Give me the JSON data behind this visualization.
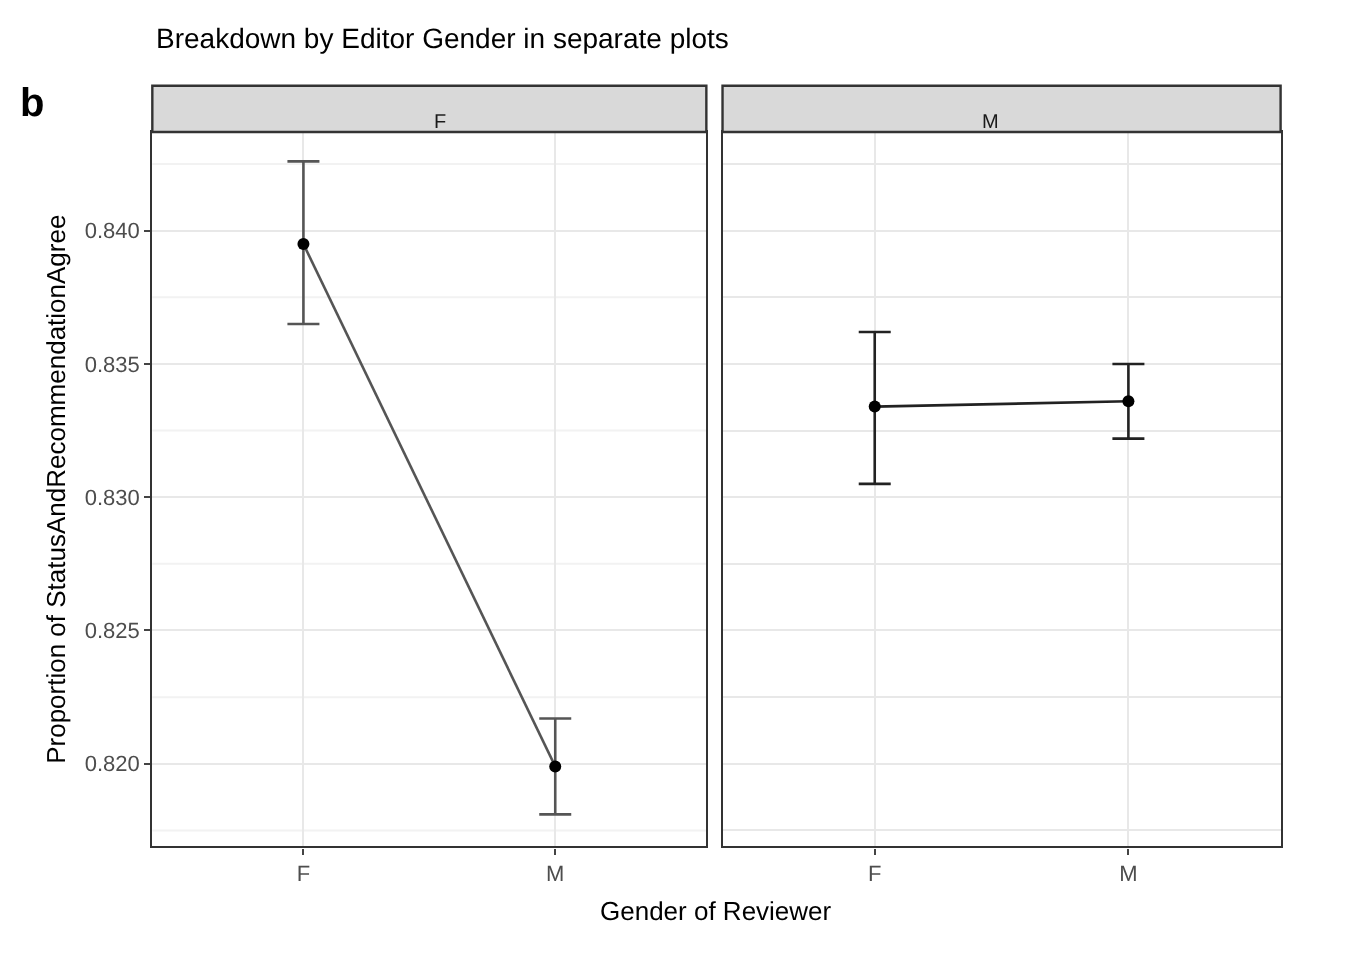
{
  "chart_data": [
    {
      "type": "line",
      "title": "F",
      "annotations": [
        "b",
        "Breakdown by Editor Gender in separate plots"
      ],
      "xlabel": "Gender of Reviewer",
      "ylabel": "Proportion of StatusAndRecommendationAgree",
      "categories": [
        "F",
        "M"
      ],
      "series": [
        {
          "color": "#555555",
          "values": [
            0.8395,
            0.8199
          ],
          "errors": [
            [
              0.8365,
              0.8426
            ],
            [
              0.8181,
              0.8217
            ]
          ]
        }
      ],
      "ylim": [
        0.8169,
        0.8437
      ],
      "yticks": [
        {
          "value": 0.8175,
          "label": null
        },
        {
          "value": 0.82,
          "label": "0.820"
        },
        {
          "value": 0.8225,
          "label": null
        },
        {
          "value": 0.825,
          "label": "0.825"
        },
        {
          "value": 0.8275,
          "label": null
        },
        {
          "value": 0.83,
          "label": "0.830"
        },
        {
          "value": 0.8325,
          "label": null
        },
        {
          "value": 0.835,
          "label": "0.835"
        },
        {
          "value": 0.8375,
          "label": null
        },
        {
          "value": 0.84,
          "label": "0.840"
        },
        {
          "value": 0.8425,
          "label": null
        }
      ],
      "grid": true,
      "marker": "circle",
      "line_style": "solid",
      "tick_labels": true
    },
    {
      "type": "line",
      "title": "M",
      "categories": [
        "F",
        "M"
      ],
      "series": [
        {
          "color": "#222222",
          "values": [
            0.8334,
            0.8336
          ],
          "errors": [
            [
              0.8305,
              0.8362
            ],
            [
              0.8322,
              0.835
            ]
          ]
        }
      ],
      "ylim": [
        0.8169,
        0.8437
      ],
      "yticks": [
        {
          "value": 0.8175,
          "label": null
        },
        {
          "value": 0.82,
          "label": null
        },
        {
          "value": 0.8225,
          "label": null
        },
        {
          "value": 0.825,
          "label": null
        },
        {
          "value": 0.8275,
          "label": null
        },
        {
          "value": 0.83,
          "label": null
        },
        {
          "value": 0.8325,
          "label": null
        },
        {
          "value": 0.835,
          "label": null
        },
        {
          "value": 0.8375,
          "label": null
        },
        {
          "value": 0.84,
          "label": null
        },
        {
          "value": 0.8425,
          "label": null
        }
      ],
      "grid": true,
      "marker": "circle",
      "line_style": "solid",
      "tick_labels": "x"
    }
  ]
}
